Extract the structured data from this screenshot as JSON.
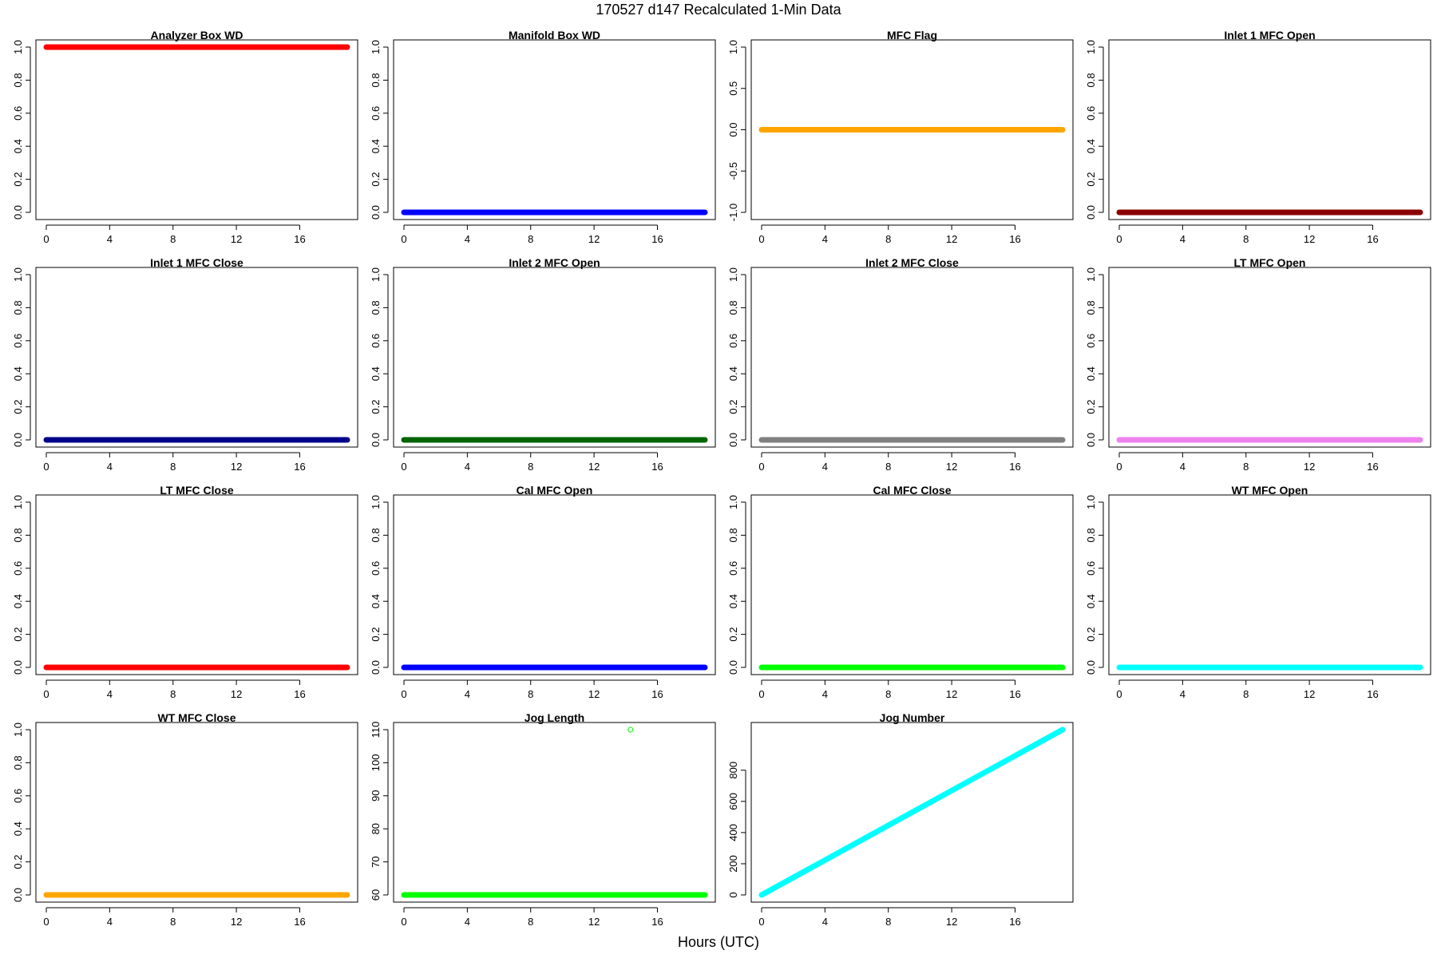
{
  "figure": {
    "title": "170527   d147   Recalculated 1-Min Data",
    "xlabel": "Hours (UTC)"
  },
  "chart_data": [
    {
      "type": "scatter",
      "title": "Analyzer Box WD",
      "color": "#ff0000",
      "xlim": [
        0,
        19
      ],
      "xticks": [
        0,
        4,
        8,
        12,
        16
      ],
      "ylim": [
        0,
        1
      ],
      "yticks": [
        0,
        0.2,
        0.4,
        0.6,
        0.8,
        1.0
      ],
      "yticklabels": [
        "0.0",
        "0.2",
        "0.4",
        "0.6",
        "0.8",
        "1.0"
      ],
      "series": [
        {
          "kind": "constant",
          "x": [
            0,
            19
          ],
          "y": 1
        }
      ]
    },
    {
      "type": "scatter",
      "title": "Manifold Box WD",
      "color": "#0000ff",
      "xlim": [
        0,
        19
      ],
      "xticks": [
        0,
        4,
        8,
        12,
        16
      ],
      "ylim": [
        0,
        1
      ],
      "yticks": [
        0,
        0.2,
        0.4,
        0.6,
        0.8,
        1.0
      ],
      "yticklabels": [
        "0.0",
        "0.2",
        "0.4",
        "0.6",
        "0.8",
        "1.0"
      ],
      "series": [
        {
          "kind": "constant",
          "x": [
            0,
            19
          ],
          "y": 0
        }
      ]
    },
    {
      "type": "scatter",
      "title": "MFC Flag",
      "color": "#ffa500",
      "xlim": [
        0,
        19
      ],
      "xticks": [
        0,
        4,
        8,
        12,
        16
      ],
      "ylim": [
        -1,
        1
      ],
      "yticks": [
        -1,
        -0.5,
        0,
        0.5,
        1
      ],
      "yticklabels": [
        "-1.0",
        "-0.5",
        "0.0",
        "0.5",
        "1.0"
      ],
      "series": [
        {
          "kind": "constant",
          "x": [
            0,
            19
          ],
          "y": 0
        }
      ]
    },
    {
      "type": "scatter",
      "title": "Inlet 1 MFC Open",
      "color": "#8b0000",
      "xlim": [
        0,
        19
      ],
      "xticks": [
        0,
        4,
        8,
        12,
        16
      ],
      "ylim": [
        0,
        1
      ],
      "yticks": [
        0,
        0.2,
        0.4,
        0.6,
        0.8,
        1.0
      ],
      "yticklabels": [
        "0.0",
        "0.2",
        "0.4",
        "0.6",
        "0.8",
        "1.0"
      ],
      "series": [
        {
          "kind": "constant",
          "x": [
            0,
            19
          ],
          "y": 0
        }
      ]
    },
    {
      "type": "scatter",
      "title": "Inlet 1 MFC Close",
      "color": "#00008b",
      "xlim": [
        0,
        19
      ],
      "xticks": [
        0,
        4,
        8,
        12,
        16
      ],
      "ylim": [
        0,
        1
      ],
      "yticks": [
        0,
        0.2,
        0.4,
        0.6,
        0.8,
        1.0
      ],
      "yticklabels": [
        "0.0",
        "0.2",
        "0.4",
        "0.6",
        "0.8",
        "1.0"
      ],
      "series": [
        {
          "kind": "constant",
          "x": [
            0,
            19
          ],
          "y": 0
        }
      ]
    },
    {
      "type": "scatter",
      "title": "Inlet 2 MFC Open",
      "color": "#006400",
      "xlim": [
        0,
        19
      ],
      "xticks": [
        0,
        4,
        8,
        12,
        16
      ],
      "ylim": [
        0,
        1
      ],
      "yticks": [
        0,
        0.2,
        0.4,
        0.6,
        0.8,
        1.0
      ],
      "yticklabels": [
        "0.0",
        "0.2",
        "0.4",
        "0.6",
        "0.8",
        "1.0"
      ],
      "series": [
        {
          "kind": "constant",
          "x": [
            0,
            19
          ],
          "y": 0
        }
      ]
    },
    {
      "type": "scatter",
      "title": "Inlet 2 MFC Close",
      "color": "#808080",
      "xlim": [
        0,
        19
      ],
      "xticks": [
        0,
        4,
        8,
        12,
        16
      ],
      "ylim": [
        0,
        1
      ],
      "yticks": [
        0,
        0.2,
        0.4,
        0.6,
        0.8,
        1.0
      ],
      "yticklabels": [
        "0.0",
        "0.2",
        "0.4",
        "0.6",
        "0.8",
        "1.0"
      ],
      "series": [
        {
          "kind": "constant",
          "x": [
            0,
            19
          ],
          "y": 0
        }
      ]
    },
    {
      "type": "scatter",
      "title": "LT MFC Open",
      "color": "#ee82ee",
      "xlim": [
        0,
        19
      ],
      "xticks": [
        0,
        4,
        8,
        12,
        16
      ],
      "ylim": [
        0,
        1
      ],
      "yticks": [
        0,
        0.2,
        0.4,
        0.6,
        0.8,
        1.0
      ],
      "yticklabels": [
        "0.0",
        "0.2",
        "0.4",
        "0.6",
        "0.8",
        "1.0"
      ],
      "series": [
        {
          "kind": "constant",
          "x": [
            0,
            19
          ],
          "y": 0
        }
      ]
    },
    {
      "type": "scatter",
      "title": "LT MFC Close",
      "color": "#ff0000",
      "xlim": [
        0,
        19
      ],
      "xticks": [
        0,
        4,
        8,
        12,
        16
      ],
      "ylim": [
        0,
        1
      ],
      "yticks": [
        0,
        0.2,
        0.4,
        0.6,
        0.8,
        1.0
      ],
      "yticklabels": [
        "0.0",
        "0.2",
        "0.4",
        "0.6",
        "0.8",
        "1.0"
      ],
      "series": [
        {
          "kind": "constant",
          "x": [
            0,
            19
          ],
          "y": 0
        }
      ]
    },
    {
      "type": "scatter",
      "title": "Cal MFC Open",
      "color": "#0000ff",
      "xlim": [
        0,
        19
      ],
      "xticks": [
        0,
        4,
        8,
        12,
        16
      ],
      "ylim": [
        0,
        1
      ],
      "yticks": [
        0,
        0.2,
        0.4,
        0.6,
        0.8,
        1.0
      ],
      "yticklabels": [
        "0.0",
        "0.2",
        "0.4",
        "0.6",
        "0.8",
        "1.0"
      ],
      "series": [
        {
          "kind": "constant",
          "x": [
            0,
            19
          ],
          "y": 0
        }
      ]
    },
    {
      "type": "scatter",
      "title": "Cal MFC Close",
      "color": "#00ff00",
      "xlim": [
        0,
        19
      ],
      "xticks": [
        0,
        4,
        8,
        12,
        16
      ],
      "ylim": [
        0,
        1
      ],
      "yticks": [
        0,
        0.2,
        0.4,
        0.6,
        0.8,
        1.0
      ],
      "yticklabels": [
        "0.0",
        "0.2",
        "0.4",
        "0.6",
        "0.8",
        "1.0"
      ],
      "series": [
        {
          "kind": "constant",
          "x": [
            0,
            19
          ],
          "y": 0
        }
      ]
    },
    {
      "type": "scatter",
      "title": "WT MFC Open",
      "color": "#00ffff",
      "xlim": [
        0,
        19
      ],
      "xticks": [
        0,
        4,
        8,
        12,
        16
      ],
      "ylim": [
        0,
        1
      ],
      "yticks": [
        0,
        0.2,
        0.4,
        0.6,
        0.8,
        1.0
      ],
      "yticklabels": [
        "0.0",
        "0.2",
        "0.4",
        "0.6",
        "0.8",
        "1.0"
      ],
      "series": [
        {
          "kind": "constant",
          "x": [
            0,
            19
          ],
          "y": 0
        }
      ]
    },
    {
      "type": "scatter",
      "title": "WT MFC Close",
      "color": "#ffa500",
      "xlim": [
        0,
        19
      ],
      "xticks": [
        0,
        4,
        8,
        12,
        16
      ],
      "ylim": [
        0,
        1
      ],
      "yticks": [
        0,
        0.2,
        0.4,
        0.6,
        0.8,
        1.0
      ],
      "yticklabels": [
        "0.0",
        "0.2",
        "0.4",
        "0.6",
        "0.8",
        "1.0"
      ],
      "series": [
        {
          "kind": "constant",
          "x": [
            0,
            19
          ],
          "y": 0
        }
      ]
    },
    {
      "type": "scatter",
      "title": "Jog Length",
      "color": "#00ff00",
      "xlim": [
        0,
        19
      ],
      "xticks": [
        0,
        4,
        8,
        12,
        16
      ],
      "ylim": [
        60,
        110
      ],
      "yticks": [
        60,
        70,
        80,
        90,
        100,
        110
      ],
      "yticklabels": [
        "60",
        "70",
        "80",
        "90",
        "100",
        "110"
      ],
      "series": [
        {
          "kind": "constant",
          "x": [
            0,
            19
          ],
          "y": 60
        },
        {
          "kind": "point",
          "x": 14.3,
          "y": 110
        }
      ]
    },
    {
      "type": "scatter",
      "title": "Jog Number",
      "color": "#00ffff",
      "xlim": [
        0,
        19
      ],
      "xticks": [
        0,
        4,
        8,
        12,
        16
      ],
      "ylim": [
        0,
        1060
      ],
      "yticks": [
        0,
        200,
        400,
        600,
        800
      ],
      "yticklabels": [
        "0",
        "200",
        "400",
        "600",
        "800"
      ],
      "series": [
        {
          "kind": "linear",
          "x": [
            0,
            19
          ],
          "y": [
            0,
            1060
          ]
        }
      ]
    }
  ]
}
